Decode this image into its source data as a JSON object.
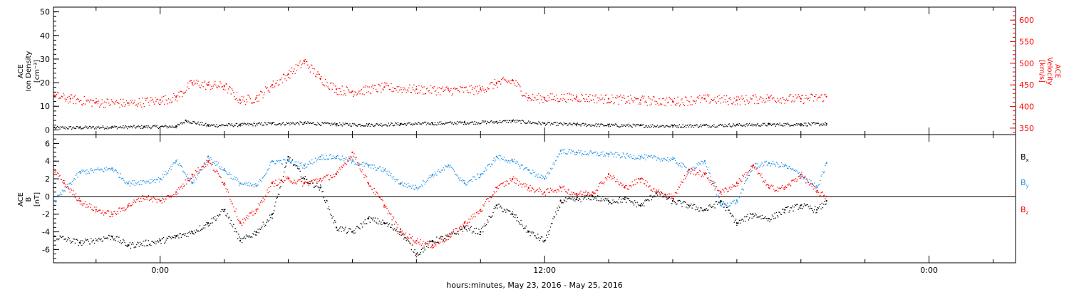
{
  "chart_data": [
    {
      "type": "scatter",
      "panel": "top",
      "x_time_range_hours": [
        -3.33,
        26.7
      ],
      "ylabel_left": [
        "ACE",
        "Ion Density",
        "[cm⁻³]"
      ],
      "ylim_left": [
        -2,
        52
      ],
      "yticks_left": [
        0,
        10,
        20,
        30,
        40,
        50
      ],
      "ylabel_right": [
        "ACE",
        "Velocity",
        "[km/s]"
      ],
      "ylim_right": [
        335,
        630
      ],
      "yticks_right": [
        350,
        400,
        450,
        500,
        550,
        600
      ],
      "series": [
        {
          "name": "density",
          "color": "#000000",
          "axis": "left",
          "x": [
            -3.3,
            -2.5,
            -1.5,
            -0.5,
            0.5,
            0.8,
            1.5,
            2.5,
            3.5,
            4.5,
            5.5,
            6.5,
            7.5,
            8.5,
            9.5,
            10.5,
            11.0,
            12.0,
            13.0,
            14.0,
            15.0,
            16.0,
            17.0,
            18.0,
            19.0,
            20.0,
            20.8
          ],
          "y": [
            1.0,
            1.1,
            1.3,
            1.4,
            1.6,
            4.0,
            2.0,
            2.3,
            2.8,
            3.0,
            2.5,
            2.3,
            2.6,
            2.9,
            3.2,
            3.5,
            3.9,
            2.8,
            2.4,
            2.1,
            1.9,
            1.8,
            2.0,
            2.2,
            2.4,
            2.5,
            2.6
          ]
        },
        {
          "name": "velocity",
          "color": "#ff0000",
          "axis": "right",
          "x": [
            -3.3,
            -2.8,
            -2.0,
            -1.0,
            0.0,
            0.5,
            1.0,
            1.5,
            2.0,
            2.5,
            3.0,
            3.5,
            4.0,
            4.5,
            5.0,
            5.5,
            6.0,
            7.0,
            8.0,
            9.0,
            10.0,
            10.5,
            11.0,
            11.5,
            12.0,
            13.0,
            14.0,
            15.0,
            16.0,
            17.0,
            18.0,
            19.0,
            20.0,
            20.8
          ],
          "y": [
            425,
            418,
            410,
            408,
            415,
            422,
            455,
            450,
            448,
            415,
            420,
            450,
            475,
            505,
            465,
            440,
            435,
            445,
            440,
            438,
            440,
            455,
            460,
            420,
            420,
            422,
            418,
            415,
            412,
            418,
            415,
            420,
            418,
            423
          ]
        }
      ]
    },
    {
      "type": "scatter",
      "panel": "bottom",
      "x_time_range_hours": [
        -3.33,
        26.7
      ],
      "ylabel": [
        "ACE",
        "B",
        "[nT]"
      ],
      "ylim": [
        -7.5,
        7
      ],
      "yticks": [
        -6,
        -4,
        -2,
        0,
        2,
        4,
        6
      ],
      "legend_placement": "right",
      "series": [
        {
          "name": "Bx",
          "legend_sub": "x",
          "color": "#000000",
          "x": [
            -3.3,
            -2.5,
            -1.5,
            -1.0,
            0.0,
            0.5,
            1.0,
            1.5,
            2.0,
            2.5,
            3.0,
            3.5,
            4.0,
            4.5,
            5.0,
            5.5,
            6.0,
            6.5,
            7.0,
            7.5,
            8.0,
            8.5,
            9.0,
            9.5,
            10.0,
            10.5,
            11.0,
            11.5,
            12.0,
            12.5,
            13.0,
            13.5,
            14.0,
            14.5,
            15.0,
            15.5,
            16.0,
            16.5,
            17.0,
            17.5,
            18.0,
            18.5,
            19.0,
            19.5,
            20.0,
            20.5,
            20.8
          ],
          "y": [
            -4.5,
            -5.2,
            -4.5,
            -5.5,
            -5.0,
            -4.5,
            -4.0,
            -3.0,
            -1.5,
            -5.0,
            -4.0,
            -2.0,
            4.5,
            2.0,
            1.0,
            -3.5,
            -4.0,
            -2.5,
            -3.0,
            -4.0,
            -6.5,
            -5.0,
            -4.5,
            -3.5,
            -4.0,
            -1.0,
            -2.0,
            -4.0,
            -5.0,
            -0.5,
            -0.3,
            0.0,
            -0.5,
            -0.3,
            -1.0,
            0.5,
            -0.5,
            -1.0,
            -1.5,
            -0.5,
            -3.0,
            -2.0,
            -2.5,
            -1.5,
            -1.0,
            -1.5,
            -0.5
          ]
        },
        {
          "name": "By",
          "legend_sub": "y",
          "color": "#1e90e6",
          "x": [
            -3.3,
            -2.5,
            -1.5,
            -1.0,
            0.0,
            0.5,
            1.0,
            1.5,
            2.0,
            2.5,
            3.0,
            3.5,
            4.0,
            4.5,
            5.0,
            5.5,
            6.0,
            6.5,
            7.0,
            7.5,
            8.0,
            8.5,
            9.0,
            9.5,
            10.0,
            10.5,
            11.0,
            11.5,
            12.0,
            12.5,
            13.0,
            14.0,
            15.0,
            16.0,
            16.5,
            17.0,
            17.5,
            18.0,
            18.5,
            19.0,
            19.5,
            20.0,
            20.5,
            20.8
          ],
          "y": [
            -0.5,
            2.8,
            3.2,
            1.5,
            2.0,
            4.0,
            1.5,
            4.5,
            3.0,
            1.5,
            1.2,
            4.0,
            4.0,
            3.5,
            4.5,
            4.5,
            4.0,
            3.5,
            3.0,
            1.5,
            1.0,
            2.5,
            3.5,
            1.5,
            2.5,
            4.5,
            4.0,
            3.0,
            2.0,
            5.2,
            5.0,
            4.8,
            4.5,
            4.2,
            3.0,
            4.0,
            -1.0,
            -0.5,
            3.5,
            3.8,
            3.5,
            2.5,
            1.0,
            3.8
          ]
        },
        {
          "name": "Bz",
          "legend_sub": "z",
          "color": "#ff0000",
          "x": [
            -3.3,
            -3.0,
            -2.5,
            -2.0,
            -1.5,
            -1.0,
            -0.5,
            0.0,
            0.5,
            1.0,
            1.5,
            2.0,
            2.5,
            3.0,
            3.5,
            4.0,
            4.5,
            5.0,
            5.5,
            6.0,
            6.5,
            7.0,
            7.5,
            8.0,
            8.5,
            9.0,
            9.5,
            10.0,
            10.5,
            11.0,
            11.5,
            12.0,
            12.5,
            13.0,
            13.5,
            14.0,
            14.5,
            15.0,
            15.5,
            16.0,
            16.5,
            17.0,
            17.5,
            18.0,
            18.5,
            19.0,
            19.5,
            20.0,
            20.5,
            20.8
          ],
          "y": [
            3.0,
            1.5,
            -0.5,
            -1.5,
            -2.0,
            -1.0,
            0.0,
            -0.5,
            0.5,
            2.5,
            4.0,
            1.5,
            -3.0,
            -1.5,
            1.5,
            2.0,
            1.5,
            2.0,
            2.5,
            5.0,
            1.5,
            -1.0,
            -4.0,
            -5.0,
            -5.5,
            -4.5,
            -3.0,
            -1.5,
            1.0,
            2.0,
            1.0,
            0.5,
            1.0,
            0.3,
            0.5,
            2.5,
            1.0,
            2.0,
            0.5,
            0.0,
            3.0,
            2.5,
            0.5,
            1.5,
            3.5,
            1.0,
            1.0,
            2.5,
            0.5,
            0.0
          ]
        }
      ]
    }
  ],
  "x_axis": {
    "tick_labels": [
      {
        "label": "0:00",
        "hour": 0
      },
      {
        "label": "12:00",
        "hour": 12
      },
      {
        "label": "0:00",
        "hour": 24
      }
    ],
    "minor_tick_step_hours": 2,
    "xlabel": "hours:minutes, May 23, 2016 - May 25, 2016"
  },
  "colors": {
    "black": "#000000",
    "red": "#ff0000",
    "blue": "#1e90e6"
  }
}
